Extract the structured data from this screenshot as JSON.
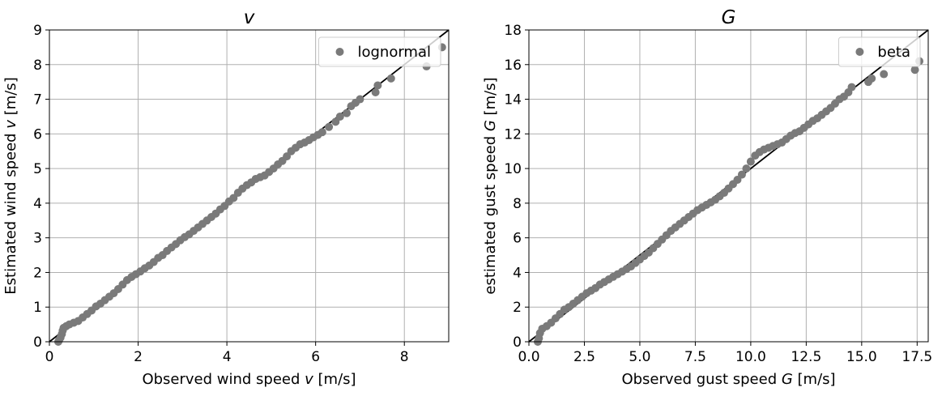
{
  "chart_data": [
    {
      "type": "scatter",
      "title": "v",
      "xlabel": "Observed wind speed v [m/s]",
      "ylabel": "Estimated wind speed v [m/s]",
      "xlim": [
        0,
        9
      ],
      "ylim": [
        0,
        9
      ],
      "xticks": [
        0,
        2,
        4,
        6,
        8
      ],
      "xtick_labels": [
        "0",
        "2",
        "4",
        "6",
        "8"
      ],
      "yticks": [
        0,
        1,
        2,
        3,
        4,
        5,
        6,
        7,
        8,
        9
      ],
      "ytick_labels": [
        "0",
        "1",
        "2",
        "3",
        "4",
        "5",
        "6",
        "7",
        "8",
        "9"
      ],
      "grid": true,
      "legend": {
        "position": "top-right",
        "entries": [
          "lognormal"
        ]
      },
      "colors": {
        "points": "#7a7a7a",
        "reference_line": "#000000",
        "grid": "#b0b0b0"
      },
      "reference_line": {
        "from": [
          0,
          0
        ],
        "to": [
          9,
          9
        ]
      },
      "series": [
        {
          "name": "lognormal",
          "points": [
            [
              0.2,
              0.0
            ],
            [
              0.22,
              0.05
            ],
            [
              0.25,
              0.12
            ],
            [
              0.28,
              0.22
            ],
            [
              0.3,
              0.32
            ],
            [
              0.32,
              0.4
            ],
            [
              0.38,
              0.45
            ],
            [
              0.45,
              0.5
            ],
            [
              0.55,
              0.55
            ],
            [
              0.65,
              0.6
            ],
            [
              0.75,
              0.7
            ],
            [
              0.85,
              0.8
            ],
            [
              0.95,
              0.9
            ],
            [
              1.05,
              1.02
            ],
            [
              1.15,
              1.1
            ],
            [
              1.25,
              1.2
            ],
            [
              1.35,
              1.3
            ],
            [
              1.45,
              1.4
            ],
            [
              1.55,
              1.52
            ],
            [
              1.65,
              1.65
            ],
            [
              1.75,
              1.78
            ],
            [
              1.85,
              1.87
            ],
            [
              1.95,
              1.95
            ],
            [
              2.05,
              2.03
            ],
            [
              2.15,
              2.12
            ],
            [
              2.25,
              2.2
            ],
            [
              2.35,
              2.3
            ],
            [
              2.45,
              2.42
            ],
            [
              2.55,
              2.5
            ],
            [
              2.65,
              2.62
            ],
            [
              2.75,
              2.72
            ],
            [
              2.85,
              2.82
            ],
            [
              2.95,
              2.93
            ],
            [
              3.05,
              3.02
            ],
            [
              3.15,
              3.1
            ],
            [
              3.25,
              3.2
            ],
            [
              3.35,
              3.3
            ],
            [
              3.45,
              3.4
            ],
            [
              3.55,
              3.5
            ],
            [
              3.65,
              3.6
            ],
            [
              3.75,
              3.7
            ],
            [
              3.85,
              3.82
            ],
            [
              3.95,
              3.92
            ],
            [
              4.05,
              4.05
            ],
            [
              4.15,
              4.15
            ],
            [
              4.25,
              4.3
            ],
            [
              4.35,
              4.42
            ],
            [
              4.45,
              4.52
            ],
            [
              4.55,
              4.6
            ],
            [
              4.65,
              4.7
            ],
            [
              4.75,
              4.75
            ],
            [
              4.85,
              4.8
            ],
            [
              4.95,
              4.9
            ],
            [
              5.05,
              5.0
            ],
            [
              5.15,
              5.12
            ],
            [
              5.25,
              5.22
            ],
            [
              5.35,
              5.35
            ],
            [
              5.45,
              5.5
            ],
            [
              5.55,
              5.6
            ],
            [
              5.65,
              5.7
            ],
            [
              5.75,
              5.75
            ],
            [
              5.85,
              5.82
            ],
            [
              5.95,
              5.9
            ],
            [
              6.05,
              5.97
            ],
            [
              6.15,
              6.05
            ],
            [
              6.3,
              6.2
            ],
            [
              6.45,
              6.35
            ],
            [
              6.55,
              6.5
            ],
            [
              6.7,
              6.6
            ],
            [
              6.8,
              6.8
            ],
            [
              6.9,
              6.9
            ],
            [
              7.0,
              7.0
            ],
            [
              7.35,
              7.2
            ],
            [
              7.4,
              7.4
            ],
            [
              7.7,
              7.6
            ],
            [
              8.5,
              7.95
            ],
            [
              8.85,
              8.5
            ]
          ]
        }
      ]
    },
    {
      "type": "scatter",
      "title": "G",
      "xlabel": "Observed gust speed G [m/s]",
      "ylabel": "estimated gust speed G [m/s]",
      "xlim": [
        0,
        18
      ],
      "ylim": [
        0,
        18
      ],
      "xticks": [
        0,
        2.5,
        5,
        7.5,
        10,
        12.5,
        15,
        17.5
      ],
      "xtick_labels": [
        "0.0",
        "2.5",
        "5.0",
        "7.5",
        "10.0",
        "12.5",
        "15.0",
        "17.5"
      ],
      "yticks": [
        0,
        2,
        4,
        6,
        8,
        10,
        12,
        14,
        16,
        18
      ],
      "ytick_labels": [
        "0",
        "2",
        "4",
        "6",
        "8",
        "10",
        "12",
        "14",
        "16",
        "18"
      ],
      "grid": true,
      "legend": {
        "position": "top-right",
        "entries": [
          "beta"
        ]
      },
      "colors": {
        "points": "#7a7a7a",
        "reference_line": "#000000",
        "grid": "#b0b0b0"
      },
      "reference_line": {
        "from": [
          0,
          0
        ],
        "to": [
          18,
          18
        ]
      },
      "series": [
        {
          "name": "beta",
          "points": [
            [
              0.4,
              0.0
            ],
            [
              0.45,
              0.2
            ],
            [
              0.5,
              0.5
            ],
            [
              0.6,
              0.75
            ],
            [
              0.8,
              0.9
            ],
            [
              1.0,
              1.1
            ],
            [
              1.2,
              1.35
            ],
            [
              1.4,
              1.6
            ],
            [
              1.6,
              1.85
            ],
            [
              1.8,
              2.0
            ],
            [
              2.0,
              2.2
            ],
            [
              2.2,
              2.4
            ],
            [
              2.4,
              2.6
            ],
            [
              2.6,
              2.8
            ],
            [
              2.8,
              2.95
            ],
            [
              3.0,
              3.1
            ],
            [
              3.2,
              3.3
            ],
            [
              3.4,
              3.45
            ],
            [
              3.6,
              3.6
            ],
            [
              3.8,
              3.75
            ],
            [
              4.0,
              3.9
            ],
            [
              4.2,
              4.05
            ],
            [
              4.4,
              4.2
            ],
            [
              4.6,
              4.35
            ],
            [
              4.8,
              4.55
            ],
            [
              5.0,
              4.75
            ],
            [
              5.2,
              4.95
            ],
            [
              5.4,
              5.15
            ],
            [
              5.6,
              5.4
            ],
            [
              5.8,
              5.65
            ],
            [
              6.0,
              5.9
            ],
            [
              6.2,
              6.15
            ],
            [
              6.4,
              6.4
            ],
            [
              6.6,
              6.6
            ],
            [
              6.8,
              6.8
            ],
            [
              7.0,
              7.0
            ],
            [
              7.2,
              7.2
            ],
            [
              7.4,
              7.4
            ],
            [
              7.6,
              7.6
            ],
            [
              7.8,
              7.75
            ],
            [
              8.0,
              7.9
            ],
            [
              8.2,
              8.05
            ],
            [
              8.4,
              8.2
            ],
            [
              8.6,
              8.4
            ],
            [
              8.8,
              8.6
            ],
            [
              9.0,
              8.85
            ],
            [
              9.2,
              9.1
            ],
            [
              9.4,
              9.35
            ],
            [
              9.6,
              9.65
            ],
            [
              9.8,
              10.0
            ],
            [
              10.0,
              10.4
            ],
            [
              10.2,
              10.75
            ],
            [
              10.4,
              10.95
            ],
            [
              10.6,
              11.1
            ],
            [
              10.8,
              11.2
            ],
            [
              11.0,
              11.3
            ],
            [
              11.2,
              11.4
            ],
            [
              11.4,
              11.5
            ],
            [
              11.6,
              11.7
            ],
            [
              11.8,
              11.9
            ],
            [
              12.0,
              12.05
            ],
            [
              12.2,
              12.15
            ],
            [
              12.4,
              12.35
            ],
            [
              12.6,
              12.55
            ],
            [
              12.8,
              12.75
            ],
            [
              13.0,
              12.9
            ],
            [
              13.2,
              13.1
            ],
            [
              13.4,
              13.3
            ],
            [
              13.6,
              13.5
            ],
            [
              13.8,
              13.75
            ],
            [
              14.0,
              14.0
            ],
            [
              14.2,
              14.15
            ],
            [
              14.4,
              14.4
            ],
            [
              14.55,
              14.7
            ],
            [
              15.3,
              15.0
            ],
            [
              15.45,
              15.2
            ],
            [
              16.0,
              15.45
            ],
            [
              17.4,
              15.7
            ],
            [
              17.6,
              16.2
            ]
          ]
        }
      ]
    }
  ]
}
